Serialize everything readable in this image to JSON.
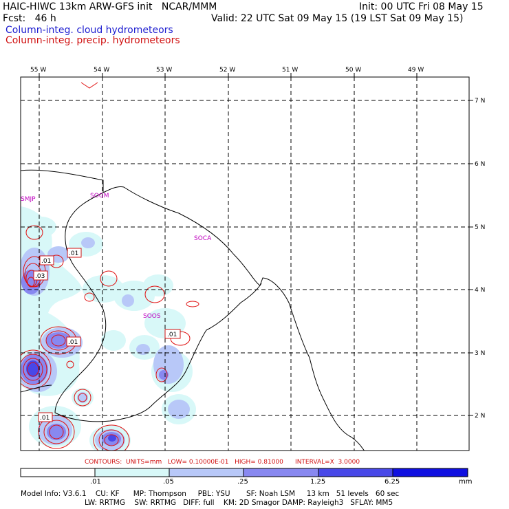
{
  "header": {
    "title": "HAIC-HIWC 13km ARW-GFS init   NCAR/MMM",
    "init": "Init: 00 UTC Fri 08 May 15",
    "fcst": "Fcst:   46 h",
    "valid": "Valid: 22 UTC Sat 09 May 15 (19 LST Sat 09 May 15)",
    "legend_cloud": "Column-integ. cloud hydrometeors",
    "legend_precip": "Column-integ. precip. hydrometeors"
  },
  "map": {
    "lon_labels": [
      "55 W",
      "54 W",
      "53 W",
      "52 W",
      "51 W",
      "50 W",
      "49 W"
    ],
    "lat_labels": [
      "7 N",
      "6 N",
      "5 N",
      "4 N",
      "3 N",
      "2 N"
    ],
    "stations": [
      "SMJP",
      "SOGM",
      "SOCA",
      "SOOS"
    ],
    "contour_labels": [
      ".01",
      ".01",
      ".03",
      ".01",
      ".01",
      ".01"
    ]
  },
  "footer": {
    "contours_line": "CONTOURS:  UNITS=mm   LOW= 0.10000E-01   HIGH= 0.81000      INTERVAL=X  3.0000",
    "colorbar_labels": [
      ".01",
      ".05",
      ".25",
      "1.25",
      "6.25",
      "mm"
    ],
    "colorbar_colors": [
      "#ffffff",
      "#d8f8f8",
      "#b8c8f8",
      "#8888f0",
      "#4848e8",
      "#1010e0"
    ],
    "model_info_1": "Model Info: V3.6.1    CU: KF      MP: Thompson     PBL: YSU       SF: Noah LSM     13 km   51 levels   60 sec",
    "model_info_2": "LW: RRTMG    SW: RRTMG   DIFF: full    KM: 2D Smagor DAMP: Rayleigh3   SFLAY: MM5"
  }
}
